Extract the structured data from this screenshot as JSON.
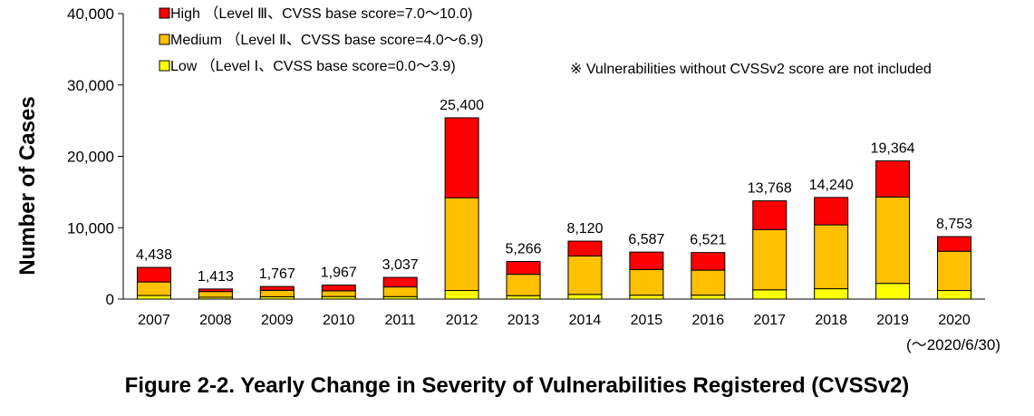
{
  "caption": "Figure 2-2. Yearly Change in Severity of Vulnerabilities Registered (CVSSv2)",
  "chart_data": {
    "type": "bar",
    "stacked": true,
    "ylabel": "Number of Cases",
    "xlabel": "",
    "ylim": [
      0,
      40000
    ],
    "yticks": [
      0,
      10000,
      20000,
      30000,
      40000
    ],
    "ytick_labels": [
      "0",
      "10,000",
      "20,000",
      "30,000",
      "40,000"
    ],
    "categories": [
      "2007",
      "2008",
      "2009",
      "2010",
      "2011",
      "2012",
      "2013",
      "2014",
      "2015",
      "2016",
      "2017",
      "2018",
      "2019",
      "2020"
    ],
    "category_note": "(～2020/6/30)",
    "series": [
      {
        "name": "Low （Level Ⅰ、CVSS base score=0.0～3.9)",
        "color": "#ffff00",
        "values": [
          500,
          260,
          330,
          360,
          350,
          1200,
          480,
          650,
          550,
          550,
          1300,
          1450,
          2200,
          1200
        ]
      },
      {
        "name": "Medium （Level Ⅱ、CVSS base score=4.0～6.9)",
        "color": "#ffc000",
        "values": [
          1900,
          800,
          900,
          800,
          1350,
          13000,
          3000,
          5400,
          3600,
          3500,
          8450,
          8950,
          12100,
          5500
        ]
      },
      {
        "name": "High （Level Ⅲ、CVSS base score=7.0～10.0)",
        "color": "#ff0000",
        "values": [
          2038,
          353,
          537,
          807,
          1337,
          11200,
          1786,
          2070,
          2437,
          2471,
          4018,
          3840,
          5064,
          2053
        ]
      }
    ],
    "totals": [
      4438,
      1413,
      1767,
      1967,
      3037,
      25400,
      5266,
      8120,
      6587,
      6521,
      13768,
      14240,
      19364,
      8753
    ],
    "total_labels": [
      "4,438",
      "1,413",
      "1,767",
      "1,967",
      "3,037",
      "25,400",
      "5,266",
      "8,120",
      "6,587",
      "6,521",
      "13,768",
      "14,240",
      "19,364",
      "8,753"
    ],
    "legend_order": [
      2,
      1,
      0
    ],
    "legend_position": "top-left",
    "note": "※ Vulnerabilities without CVSSv2 score are not included",
    "grid": false
  }
}
